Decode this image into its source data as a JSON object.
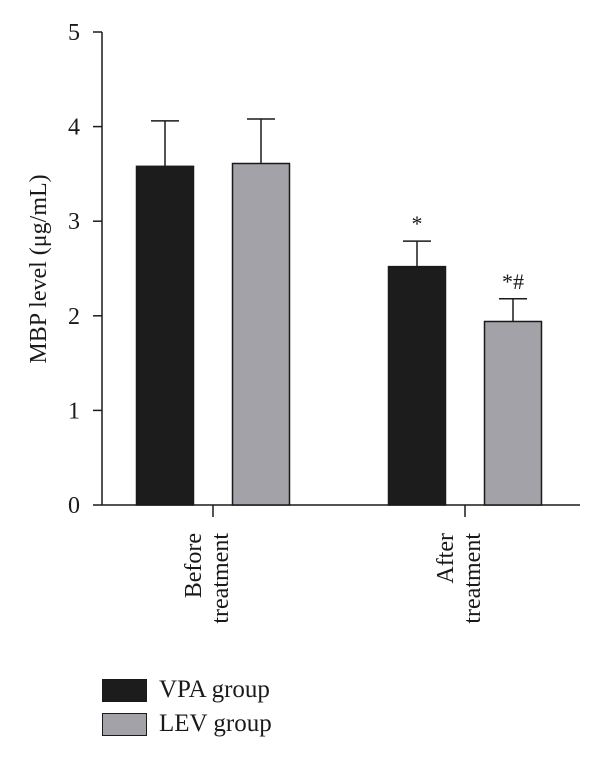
{
  "chart_data": {
    "type": "bar",
    "ylabel": "MBP level (μg/mL)",
    "ylim": [
      0,
      5
    ],
    "yticks": [
      0,
      1,
      2,
      3,
      4,
      5
    ],
    "categories": [
      {
        "lines": [
          "Before",
          "treatment"
        ]
      },
      {
        "lines": [
          "After",
          "treatment"
        ]
      }
    ],
    "series": [
      {
        "name": "VPA group",
        "color": "#1c1c1c",
        "values": [
          3.58,
          2.52
        ],
        "errors": [
          0.48,
          0.27
        ],
        "annotations": [
          "",
          "*"
        ]
      },
      {
        "name": "LEV group",
        "color": "#a2a2a8",
        "values": [
          3.61,
          1.94
        ],
        "errors": [
          0.47,
          0.24
        ],
        "annotations": [
          "",
          "*#"
        ]
      }
    ],
    "grid": false,
    "legend_position": "bottom-left"
  }
}
